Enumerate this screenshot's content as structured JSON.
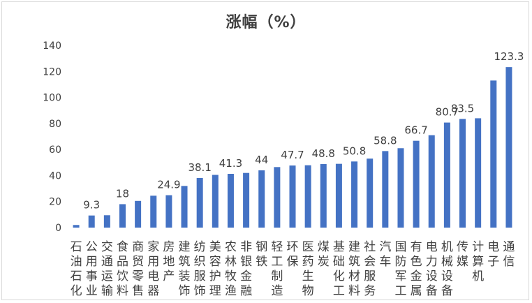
{
  "chart_data": {
    "type": "bar",
    "title": "涨幅（%）",
    "xlabel": "",
    "ylabel": "",
    "ylim": [
      0,
      140
    ],
    "yticks": [
      0,
      20,
      40,
      60,
      80,
      100,
      120,
      140
    ],
    "grid": false,
    "legend": "none",
    "bar_color": "#4472c4",
    "categories": [
      "石油石化",
      "公用事业",
      "交通运输",
      "食品饮料",
      "商贸零售",
      "家用电器",
      "房地产",
      "建筑装饰",
      "纺织服饰",
      "美容护理",
      "农林牧渔",
      "非银金融",
      "钢铁",
      "轻工制造",
      "环保",
      "医药生物",
      "煤炭",
      "基础化工",
      "建筑材料",
      "社会服务",
      "汽车",
      "国防军工",
      "有色金属",
      "电力设备",
      "机械设备",
      "传媒",
      "计算机",
      "电子",
      "通信"
    ],
    "values": [
      2,
      9.3,
      9.5,
      18,
      20.5,
      24.5,
      24.9,
      32,
      38.1,
      40.5,
      41.3,
      42,
      44,
      46.5,
      47.7,
      47.9,
      48.8,
      49,
      50.8,
      53,
      58.8,
      61,
      66.7,
      71,
      80.7,
      83.5,
      84,
      113,
      123.3
    ],
    "data_labels": [
      "",
      "9.3",
      "",
      "18",
      "",
      "",
      "24.9",
      "",
      "38.1",
      "",
      "41.3",
      "",
      "44",
      "",
      "47.7",
      "",
      "48.8",
      "",
      "50.8",
      "",
      "58.8",
      "",
      "66.7",
      "",
      "80.7",
      "83.5",
      "",
      "",
      "123.3"
    ]
  }
}
